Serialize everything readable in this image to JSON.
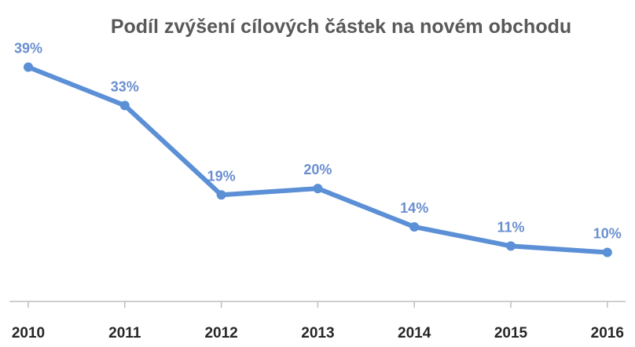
{
  "chart_data": {
    "type": "line",
    "title": "Podíl zvýšení cílových částek na novém obchodu",
    "xlabel": "",
    "ylabel": "",
    "categories": [
      "2010",
      "2011",
      "2012",
      "2013",
      "2014",
      "2015",
      "2016"
    ],
    "series": [
      {
        "values": [
          39,
          33,
          19,
          20,
          14,
          11,
          10
        ],
        "labels": [
          "39%",
          "33%",
          "19%",
          "20%",
          "14%",
          "11%",
          "10%"
        ]
      }
    ],
    "ylim": [
      0,
      40
    ],
    "grid": false,
    "legend": "none",
    "colors": {
      "line": "#5b8fd6",
      "label": "#6a8fd0",
      "axis": "#bfbfbf"
    }
  }
}
